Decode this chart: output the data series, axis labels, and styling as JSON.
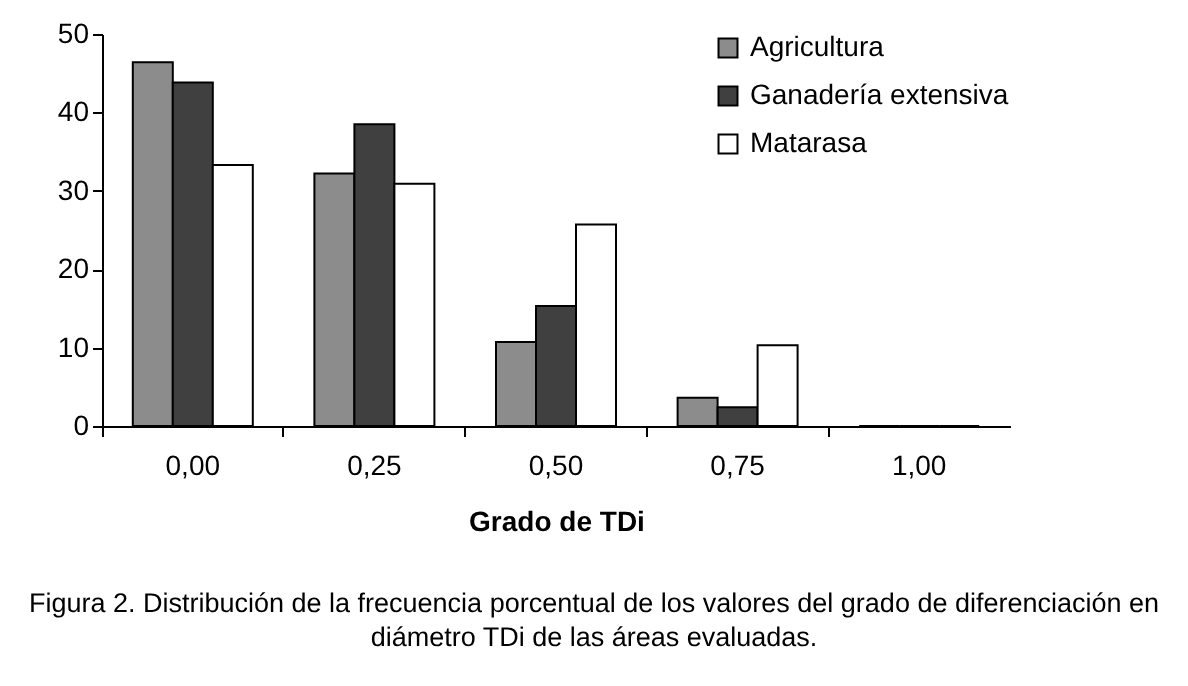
{
  "chart_data": {
    "type": "bar",
    "xlabel": "Grado de TDi",
    "categories": [
      "0,00",
      "0,25",
      "0,50",
      "0,75",
      "1,00"
    ],
    "series": [
      {
        "name": "Agricultura",
        "color": "#8c8c8c",
        "values": [
          46.4,
          32.2,
          10.7,
          3.6,
          0
        ]
      },
      {
        "name": "Ganadería extensiva",
        "color": "#404040",
        "values": [
          43.8,
          38.5,
          15.3,
          2.4,
          0
        ]
      },
      {
        "name": "Matarasa",
        "color": "#ffffff",
        "values": [
          33.3,
          30.9,
          25.7,
          10.3,
          0
        ]
      }
    ],
    "ylim": [
      0,
      50
    ],
    "yticks": [
      0,
      10,
      20,
      30,
      40,
      50
    ],
    "grid": false,
    "legend": "top right",
    "annotations": [
      "Figura 2. Distribución de la frecuencia porcentual de los valores del grado de diferenciación en diámetro TDi de las áreas evaluadas."
    ]
  }
}
